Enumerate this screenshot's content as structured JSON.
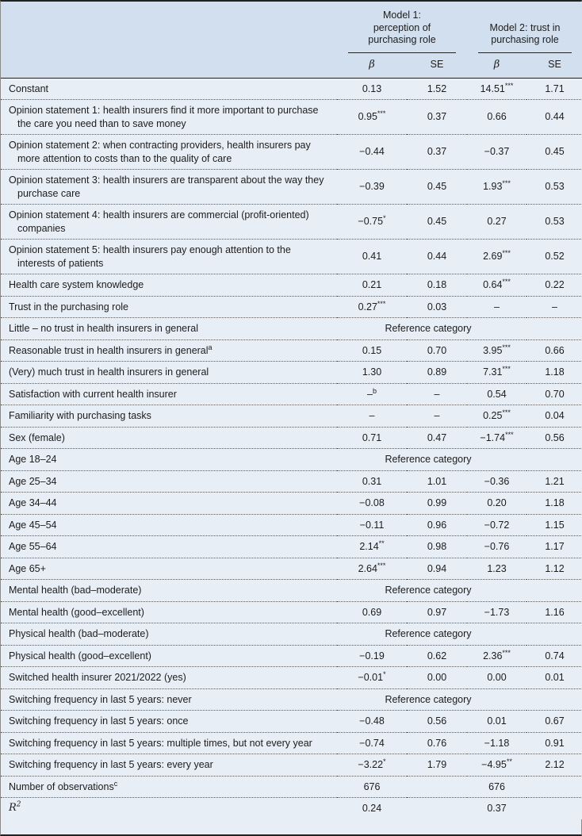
{
  "table": {
    "model1_header": "Model 1:\nperception of\npurchasing role",
    "model2_header": "Model 2: trust in\npurchasing role",
    "col_beta": "β",
    "col_se": "SE",
    "reference_text": "Reference category",
    "rows": [
      {
        "label": "Constant",
        "cells": [
          "0.13",
          "1.52",
          "14.51^{***}",
          "1.71"
        ]
      },
      {
        "label": "Opinion statement 1: health insurers find it more important to purchase the care you need than to save money",
        "cells": [
          "0.95^{***}",
          "0.37",
          "0.66",
          "0.44"
        ]
      },
      {
        "label": "Opinion statement 2: when contracting providers, health insurers pay more attention to costs than to the quality of care",
        "cells": [
          "−0.44",
          "0.37",
          "−0.37",
          "0.45"
        ]
      },
      {
        "label": "Opinion statement 3: health insurers are transparent about the way they purchase care",
        "cells": [
          "−0.39",
          "0.45",
          "1.93^{***}",
          "0.53"
        ]
      },
      {
        "label": "Opinion statement 4: health insurers are commercial (profit-oriented) companies",
        "cells": [
          "−0.75^{*}",
          "0.45",
          "0.27",
          "0.53"
        ]
      },
      {
        "label": "Opinion statement 5: health insurers pay enough attention to the interests of patients",
        "cells": [
          "0.41",
          "0.44",
          "2.69^{***}",
          "0.52"
        ]
      },
      {
        "label": "Health care system knowledge",
        "cells": [
          "0.21",
          "0.18",
          "0.64^{***}",
          "0.22"
        ]
      },
      {
        "label": "Trust in the purchasing role",
        "cells": [
          "0.27^{***}",
          "0.03",
          "–",
          "–"
        ]
      },
      {
        "label": "Little – no trust in health insurers in general",
        "ref": true
      },
      {
        "label": "Reasonable trust in health insurers in general^{a}",
        "cells": [
          "0.15",
          "0.70",
          "3.95^{***}",
          "0.66"
        ]
      },
      {
        "label": "(Very) much trust in health insurers in general",
        "cells": [
          "1.30",
          "0.89",
          "7.31^{***}",
          "1.18"
        ]
      },
      {
        "label": "Satisfaction with current health insurer",
        "cells": [
          "–^{b}",
          "–",
          "0.54",
          "0.70"
        ]
      },
      {
        "label": "Familiarity with purchasing tasks",
        "cells": [
          "–",
          "–",
          "0.25^{***}",
          "0.04"
        ]
      },
      {
        "label": "Sex (female)",
        "cells": [
          "0.71",
          "0.47",
          "−1.74^{***}",
          "0.56"
        ]
      },
      {
        "label": "Age 18–24",
        "ref": true
      },
      {
        "label": "Age 25–34",
        "cells": [
          "0.31",
          "1.01",
          "−0.36",
          "1.21"
        ]
      },
      {
        "label": "Age 34–44",
        "cells": [
          "−0.08",
          "0.99",
          "0.20",
          "1.18"
        ]
      },
      {
        "label": "Age 45–54",
        "cells": [
          "−0.11",
          "0.96",
          "−0.72",
          "1.15"
        ]
      },
      {
        "label": "Age 55–64",
        "cells": [
          "2.14^{**}",
          "0.98",
          "−0.76",
          "1.17"
        ]
      },
      {
        "label": "Age 65+",
        "cells": [
          "2.64^{***}",
          "0.94",
          "1.23",
          "1.12"
        ]
      },
      {
        "label": "Mental health (bad–moderate)",
        "ref": true
      },
      {
        "label": "Mental health (good–excellent)",
        "cells": [
          "0.69",
          "0.97",
          "−1.73",
          "1.16"
        ]
      },
      {
        "label": "Physical health (bad–moderate)",
        "ref": true
      },
      {
        "label": "Physical health (good–excellent)",
        "cells": [
          "−0.19",
          "0.62",
          "2.36^{***}",
          "0.74"
        ]
      },
      {
        "label": "Switched health insurer 2021/2022 (yes)",
        "cells": [
          "−0.01^{*}",
          "0.00",
          "0.00",
          "0.01"
        ]
      },
      {
        "label": "Switching frequency in last 5 years: never",
        "ref": true
      },
      {
        "label": "Switching frequency in last 5 years: once",
        "cells": [
          "−0.48",
          "0.56",
          "0.01",
          "0.67"
        ]
      },
      {
        "label": "Switching frequency in last 5 years: multiple times, but not every year",
        "cells": [
          "−0.74",
          "0.76",
          "−1.18",
          "0.91"
        ]
      },
      {
        "label": "Switching frequency in last 5 years: every year",
        "cells": [
          "−3.22^{*}",
          "1.79",
          "−4.95^{**}",
          "2.12"
        ]
      },
      {
        "label": "Number of observations^{c}",
        "cells": [
          "676",
          "",
          "676",
          ""
        ]
      },
      {
        "label": "R^{2}",
        "italic": true,
        "cells": [
          "0.24",
          "",
          "0.37",
          ""
        ]
      }
    ]
  }
}
